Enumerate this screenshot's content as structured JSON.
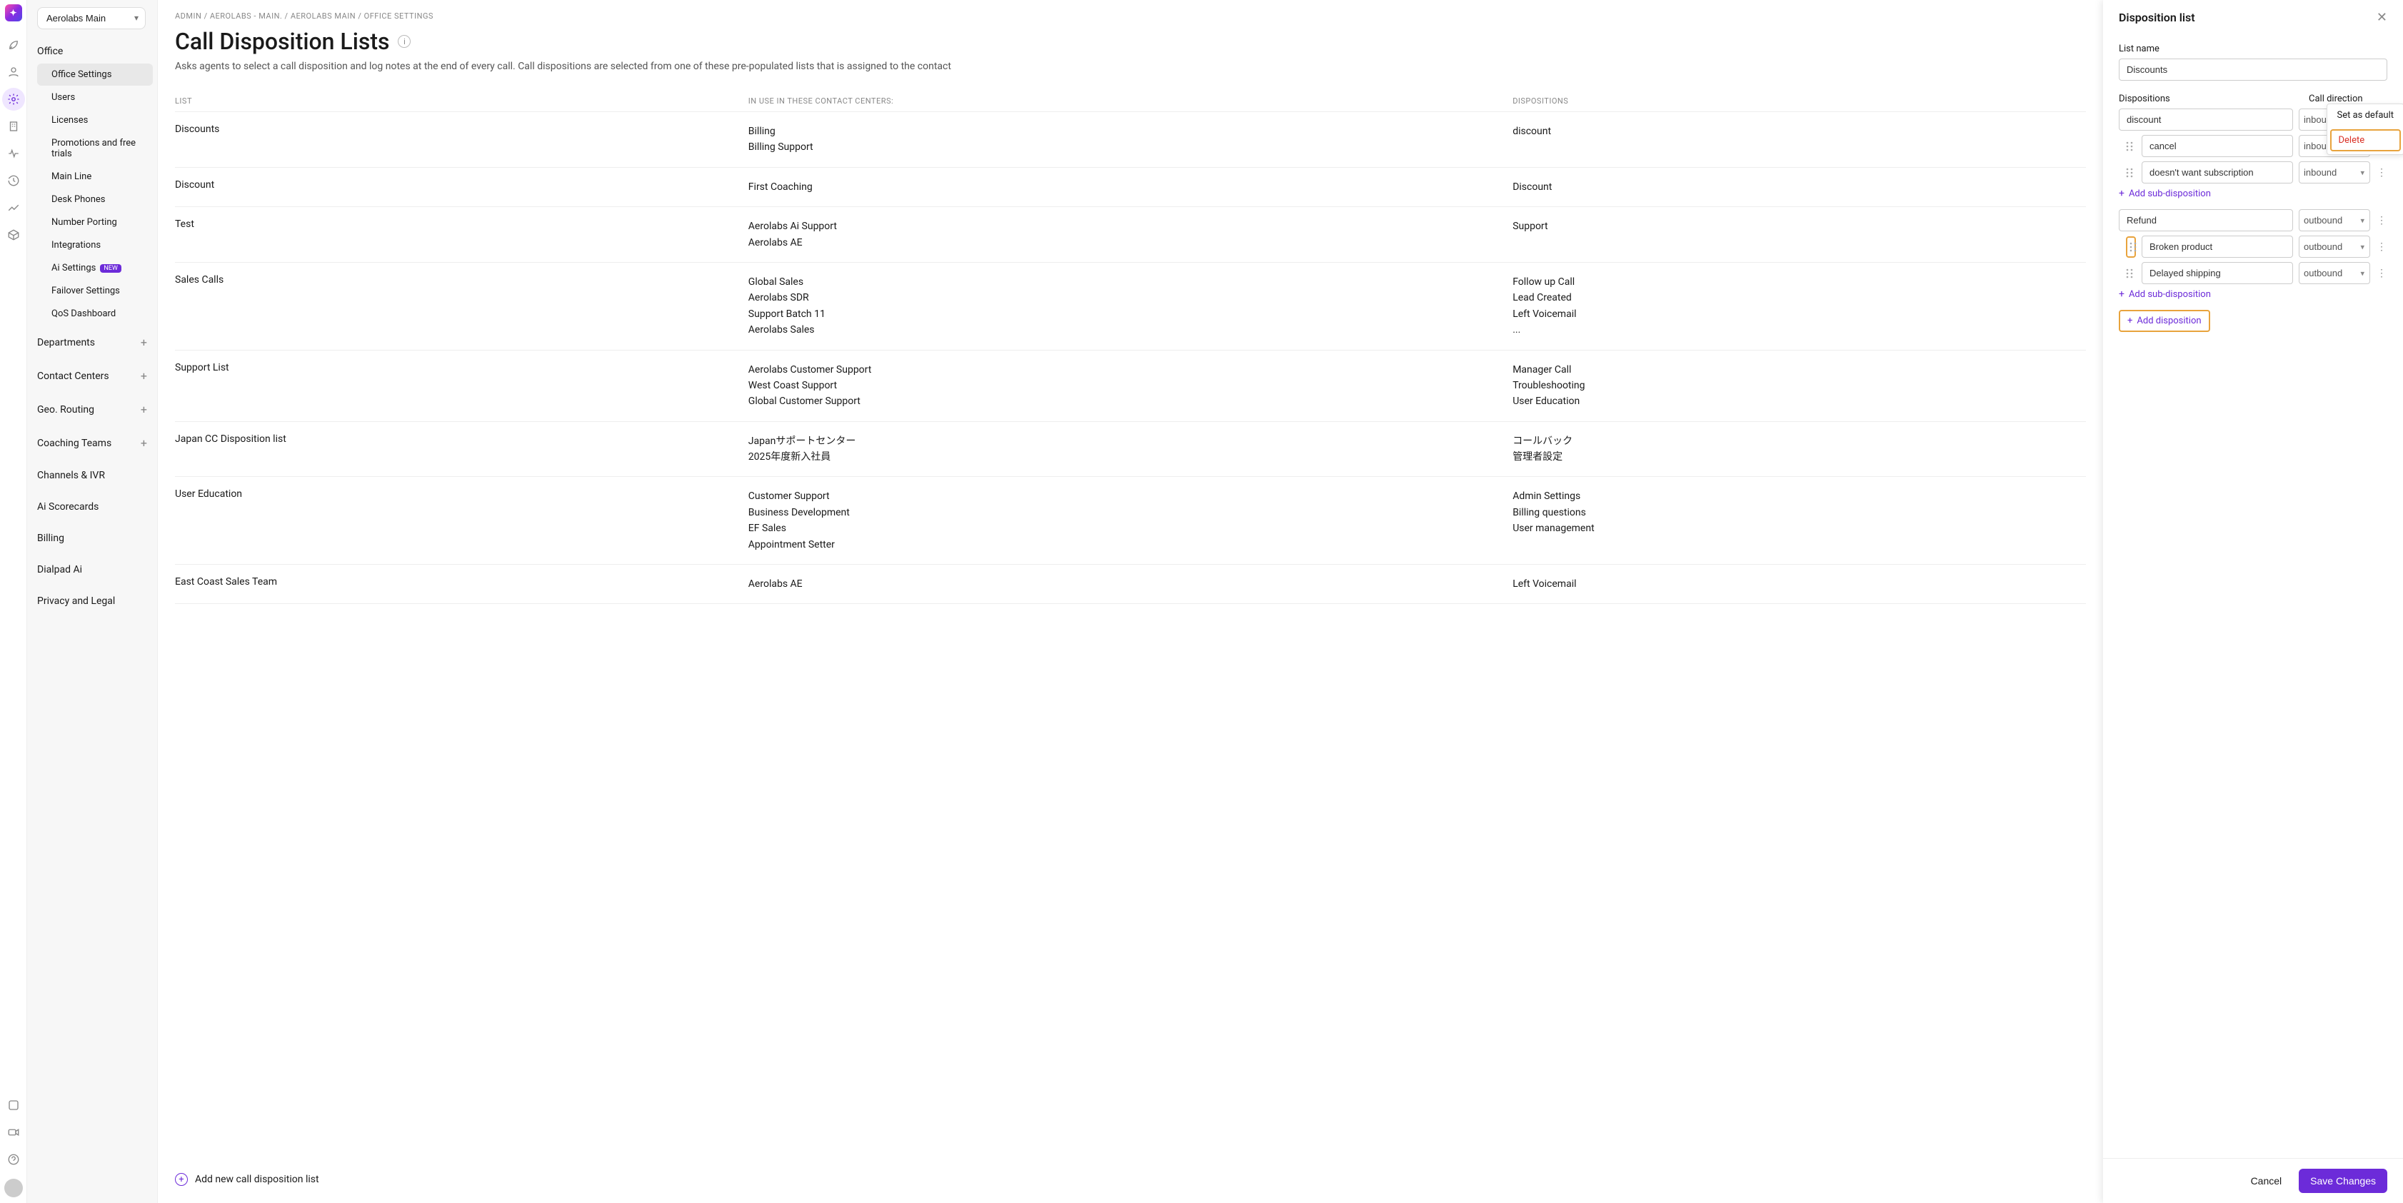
{
  "colors": {
    "accent": "#6c2bd9",
    "highlight_border": "#e8a33d",
    "danger": "#d93025",
    "sidebar_bg": "#f7f7f7",
    "border": "#eeeeee",
    "text_muted": "#888888"
  },
  "header_select": "Aerolabs Main",
  "breadcrumbs": {
    "p0": "ADMIN",
    "p1": "AEROLABS - MAIN.",
    "p2": "AEROLABS MAIN",
    "p3": "OFFICE SETTINGS"
  },
  "page": {
    "title": "Call Disposition Lists",
    "description": "Asks agents to select a call disposition and log notes at the end of every call. Call dispositions are selected from one of these pre-populated lists that is assigned to the contact"
  },
  "sidenav": {
    "office": {
      "title": "Office",
      "items": [
        {
          "label": "Office Settings"
        },
        {
          "label": "Users"
        },
        {
          "label": "Licenses"
        },
        {
          "label": "Promotions and free trials"
        },
        {
          "label": "Main Line"
        },
        {
          "label": "Desk Phones"
        },
        {
          "label": "Number Porting"
        },
        {
          "label": "Integrations"
        },
        {
          "label": "Ai Settings",
          "badge": "NEW"
        },
        {
          "label": "Failover Settings"
        },
        {
          "label": "QoS Dashboard"
        }
      ]
    },
    "expandables": [
      {
        "label": "Departments"
      },
      {
        "label": "Contact Centers"
      },
      {
        "label": "Geo. Routing"
      },
      {
        "label": "Coaching Teams"
      }
    ],
    "links": [
      {
        "label": "Channels & IVR"
      },
      {
        "label": "Ai Scorecards"
      },
      {
        "label": "Billing"
      },
      {
        "label": "Dialpad Ai"
      },
      {
        "label": "Privacy and Legal"
      }
    ]
  },
  "table": {
    "cols": {
      "c0": "LIST",
      "c1": "IN USE IN THESE CONTACT CENTERS:",
      "c2": "DISPOSITIONS"
    },
    "rows": [
      {
        "list": "Discounts",
        "centers": "Billing\nBilling Support",
        "disp": "discount"
      },
      {
        "list": "Discount",
        "centers": "First Coaching",
        "disp": "Discount"
      },
      {
        "list": "Test",
        "centers": "Aerolabs Ai Support\nAerolabs AE",
        "disp": "Support"
      },
      {
        "list": "Sales Calls",
        "centers": "Global Sales\nAerolabs SDR\nSupport Batch 11\nAerolabs Sales",
        "disp": "Follow up Call\nLead Created\nLeft Voicemail\n..."
      },
      {
        "list": "Support List",
        "centers": "Aerolabs Customer Support\nWest Coast Support\nGlobal Customer Support",
        "disp": "Manager Call\nTroubleshooting\nUser Education"
      },
      {
        "list": "Japan CC Disposition list",
        "centers": "Japanサポートセンター\n2025年度新入社員",
        "disp": "コールバック\n管理者設定"
      },
      {
        "list": "User Education",
        "centers": "Customer Support\nBusiness Development\nEF Sales\nAppointment Setter",
        "disp": "Admin Settings\nBilling questions\nUser management"
      },
      {
        "list": "East Coast Sales Team",
        "centers": "Aerolabs AE",
        "disp": "Left Voicemail"
      }
    ]
  },
  "add_list_label": "Add new call disposition list",
  "panel": {
    "title": "Disposition list",
    "list_name_label": "List name",
    "list_name_value": "Discounts",
    "dispositions_label": "Dispositions",
    "direction_label": "Call direction",
    "groups": [
      {
        "main": {
          "value": "discount",
          "dir": "inbound"
        },
        "subs": [
          {
            "value": "cancel",
            "dir": "inbound"
          },
          {
            "value": "doesn't want subscription",
            "dir": "inbound"
          }
        ]
      },
      {
        "main": {
          "value": "Refund",
          "dir": "outbound"
        },
        "subs": [
          {
            "value": "Broken product",
            "dir": "outbound",
            "drag_highlight": true
          },
          {
            "value": "Delayed shipping",
            "dir": "outbound"
          }
        ]
      }
    ],
    "add_sub_label": "Add sub-disposition",
    "add_disp_label": "Add disposition",
    "menu": {
      "set_default": "Set as default",
      "delete": "Delete"
    },
    "cancel": "Cancel",
    "save": "Save Changes"
  }
}
